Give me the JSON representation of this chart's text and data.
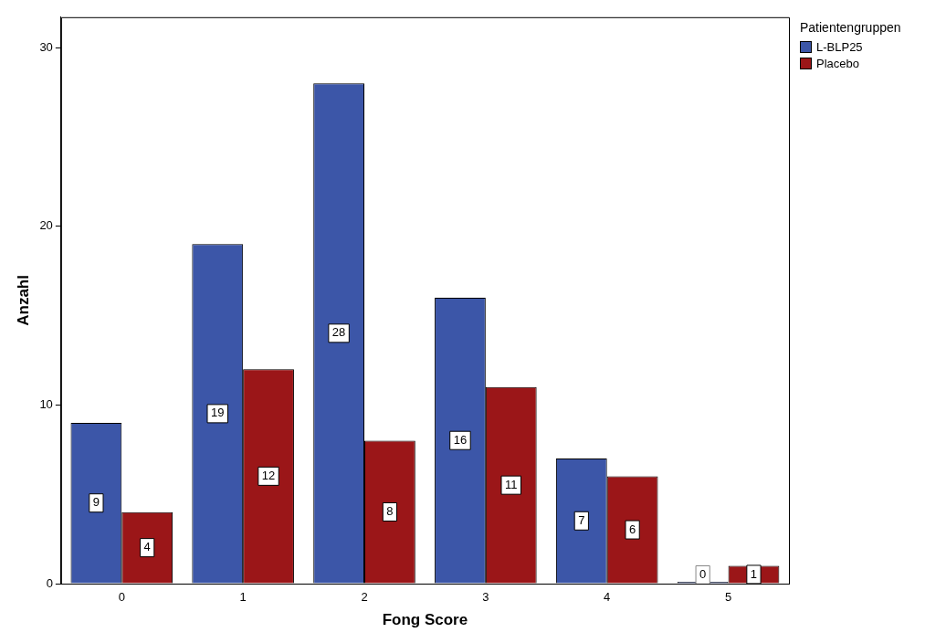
{
  "chart_data": {
    "type": "bar",
    "xlabel": "Fong Score",
    "ylabel": "Anzahl",
    "legend_title": "Patientengruppen",
    "categories": [
      "0",
      "1",
      "2",
      "3",
      "4",
      "5"
    ],
    "series": [
      {
        "name": "L-BLP25",
        "color": "#3c56a8",
        "values": [
          9,
          19,
          28,
          16,
          7,
          0
        ]
      },
      {
        "name": "Placebo",
        "color": "#9b1618",
        "values": [
          4,
          12,
          8,
          11,
          6,
          1
        ]
      }
    ],
    "ylim": [
      0,
      31.7
    ],
    "yticks": [
      0,
      10,
      20,
      30
    ],
    "grid": false,
    "legend": "top right",
    "data_labels": true
  }
}
